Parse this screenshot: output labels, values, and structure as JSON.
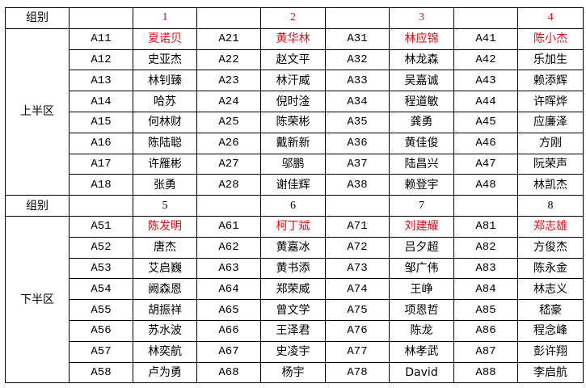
{
  "colors": {
    "highlight": "#e0101a",
    "border": "#000000"
  },
  "sections": [
    {
      "header_label": "组别",
      "area_label": "上半区",
      "groups": [
        {
          "number": "1",
          "players": [
            [
              "A11",
              "夏诺贝"
            ],
            [
              "A12",
              "史亚杰"
            ],
            [
              "A13",
              "林钊臻"
            ],
            [
              "A14",
              "哈苏"
            ],
            [
              "A15",
              "何林财"
            ],
            [
              "A16",
              "陈陆聪"
            ],
            [
              "A17",
              "许雁彬"
            ],
            [
              "A18",
              "张勇"
            ]
          ]
        },
        {
          "number": "2",
          "players": [
            [
              "A21",
              "黄华林"
            ],
            [
              "A22",
              "赵文平"
            ],
            [
              "A23",
              "林汗威"
            ],
            [
              "A24",
              "倪时淦"
            ],
            [
              "A25",
              "陈荣彬"
            ],
            [
              "A26",
              "戴新新"
            ],
            [
              "A27",
              "邬鹏"
            ],
            [
              "A28",
              "谢佳辉"
            ]
          ]
        },
        {
          "number": "3",
          "players": [
            [
              "A31",
              "林应锦"
            ],
            [
              "A32",
              "林龙森"
            ],
            [
              "A33",
              "吴嘉诚"
            ],
            [
              "A34",
              "程道敏"
            ],
            [
              "A35",
              "龚勇"
            ],
            [
              "A36",
              "黄佳俊"
            ],
            [
              "A37",
              "陆昌兴"
            ],
            [
              "A38",
              "赖登宇"
            ]
          ]
        },
        {
          "number": "4",
          "players": [
            [
              "A41",
              "陈小杰"
            ],
            [
              "A42",
              "乐加生"
            ],
            [
              "A43",
              "赖添辉"
            ],
            [
              "A44",
              "许晖烨"
            ],
            [
              "A45",
              "应廉泽"
            ],
            [
              "A46",
              "方刚"
            ],
            [
              "A47",
              "阮荣声"
            ],
            [
              "A48",
              "林凯杰"
            ]
          ]
        }
      ],
      "number_red": true
    },
    {
      "header_label": "组别",
      "area_label": "下半区",
      "groups": [
        {
          "number": "5",
          "players": [
            [
              "A51",
              "陈发明"
            ],
            [
              "A52",
              "唐杰"
            ],
            [
              "A53",
              "艾启巍"
            ],
            [
              "A54",
              "阙森恩"
            ],
            [
              "A55",
              "胡振祥"
            ],
            [
              "A56",
              "苏水波"
            ],
            [
              "A57",
              "林奕航"
            ],
            [
              "A58",
              "卢为勇"
            ]
          ]
        },
        {
          "number": "6",
          "players": [
            [
              "A61",
              "柯丁斌"
            ],
            [
              "A62",
              "黄嘉冰"
            ],
            [
              "A63",
              "黄书添"
            ],
            [
              "A64",
              "郑荣威"
            ],
            [
              "A65",
              "曾文学"
            ],
            [
              "A66",
              "王泽君"
            ],
            [
              "A67",
              "史凌宇"
            ],
            [
              "A68",
              "杨宇"
            ]
          ]
        },
        {
          "number": "7",
          "players": [
            [
              "A71",
              "刘建耀"
            ],
            [
              "A72",
              "吕夕超"
            ],
            [
              "A73",
              "邹广伟"
            ],
            [
              "A74",
              "王峥"
            ],
            [
              "A75",
              "项恩哲"
            ],
            [
              "A76",
              "陈龙"
            ],
            [
              "A77",
              "林孝武"
            ],
            [
              "A78",
              "David"
            ]
          ]
        },
        {
          "number": "8",
          "players": [
            [
              "A81",
              "郑志雄"
            ],
            [
              "A82",
              "方俊杰"
            ],
            [
              "A83",
              "陈永金"
            ],
            [
              "A84",
              "林志义"
            ],
            [
              "A85",
              "嵇豪"
            ],
            [
              "A86",
              "程念峰"
            ],
            [
              "A87",
              "彭许翔"
            ],
            [
              "A88",
              "李启航"
            ]
          ]
        }
      ],
      "number_red": false
    }
  ]
}
